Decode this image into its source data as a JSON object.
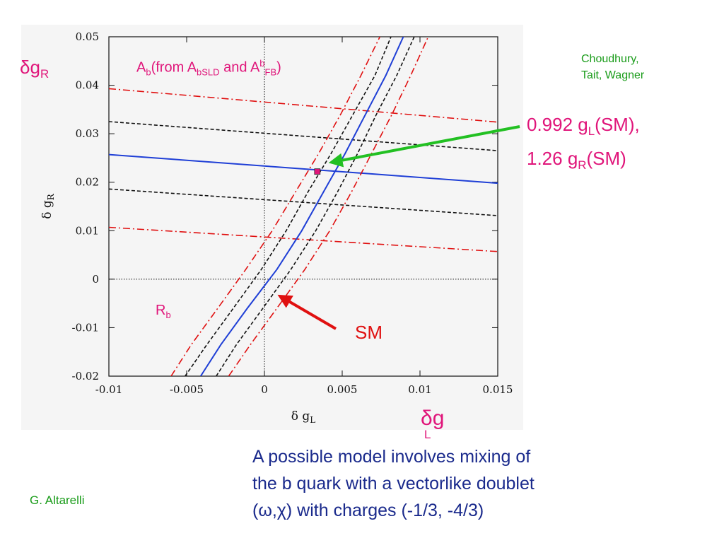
{
  "chart_data": {
    "type": "line",
    "xlabel": "δ g",
    "xlabel_sub": "L",
    "ylabel": "δ g",
    "ylabel_sub": "R",
    "xlim": [
      -0.01,
      0.015
    ],
    "ylim": [
      -0.02,
      0.05
    ],
    "x_ticks": [
      -0.01,
      -0.005,
      0,
      0.005,
      0.01,
      0.015
    ],
    "x_tick_labels": [
      "-0.01",
      "-0.005",
      "0",
      "0.005",
      "0.01",
      "0.015"
    ],
    "y_ticks": [
      -0.02,
      -0.01,
      0,
      0.01,
      0.02,
      0.03,
      0.04,
      0.05
    ],
    "y_tick_labels": [
      "-0.02",
      "-0.01",
      "0",
      "0.01",
      "0.02",
      "0.03",
      "0.04",
      "0.05"
    ],
    "zero_lines": true,
    "series": [
      {
        "group": "Ab",
        "style": "central",
        "color": "#1f3fd6",
        "x": [
          -0.01,
          0.015
        ],
        "y": [
          0.0257,
          0.0198
        ]
      },
      {
        "group": "Ab",
        "style": "band-1sigma",
        "color": "#111111",
        "x": [
          -0.01,
          0.015
        ],
        "y": [
          0.0325,
          0.0265
        ]
      },
      {
        "group": "Ab",
        "style": "band-1sigma",
        "color": "#111111",
        "x": [
          -0.01,
          0.015
        ],
        "y": [
          0.0186,
          0.0131
        ]
      },
      {
        "group": "Ab",
        "style": "band-2sigma",
        "color": "#e01010",
        "x": [
          -0.01,
          0.015
        ],
        "y": [
          0.0393,
          0.0324
        ]
      },
      {
        "group": "Ab",
        "style": "band-2sigma",
        "color": "#e01010",
        "x": [
          -0.01,
          0.015
        ],
        "y": [
          0.0107,
          0.0057
        ]
      },
      {
        "group": "Rb",
        "style": "central",
        "color": "#1f3fd6",
        "x": [
          -0.0041,
          -0.0028,
          -0.0011,
          0.0008,
          0.0024,
          0.0038,
          0.0052,
          0.0065,
          0.0078,
          0.009
        ],
        "y": [
          -0.02,
          -0.0135,
          -0.006,
          0.002,
          0.01,
          0.018,
          0.026,
          0.034,
          0.042,
          0.0505
        ]
      },
      {
        "group": "Rb",
        "style": "band-1sigma",
        "color": "#111111",
        "x": [
          -0.0051,
          -0.0037,
          -0.002,
          -0.0002,
          0.0014,
          0.0028,
          0.0043,
          0.0057,
          0.0071,
          0.0082
        ],
        "y": [
          -0.02,
          -0.0135,
          -0.006,
          0.002,
          0.01,
          0.018,
          0.026,
          0.034,
          0.042,
          0.0505
        ]
      },
      {
        "group": "Rb",
        "style": "band-1sigma",
        "color": "#111111",
        "x": [
          -0.0031,
          -0.0018,
          -0.0001,
          0.0017,
          0.0033,
          0.0047,
          0.006,
          0.0072,
          0.0085,
          0.0097
        ],
        "y": [
          -0.02,
          -0.0135,
          -0.006,
          0.002,
          0.01,
          0.018,
          0.026,
          0.034,
          0.042,
          0.0505
        ]
      },
      {
        "group": "Rb",
        "style": "band-2sigma",
        "color": "#e01010",
        "x": [
          -0.006,
          -0.0047,
          -0.003,
          -0.0012,
          0.0005,
          0.002,
          0.0035,
          0.0049,
          0.0062,
          0.0075
        ],
        "y": [
          -0.02,
          -0.0135,
          -0.006,
          0.002,
          0.01,
          0.018,
          0.026,
          0.034,
          0.042,
          0.0505
        ]
      },
      {
        "group": "Rb",
        "style": "band-2sigma",
        "color": "#e01010",
        "x": [
          -0.0023,
          -0.0009,
          0.0008,
          0.0026,
          0.0042,
          0.0056,
          0.0069,
          0.0082,
          0.0094,
          0.0106
        ],
        "y": [
          -0.02,
          -0.0135,
          -0.006,
          0.002,
          0.01,
          0.018,
          0.026,
          0.034,
          0.042,
          0.0505
        ]
      }
    ],
    "points": [
      {
        "x": 0.0034,
        "y": 0.0222,
        "color": "#e0157a"
      }
    ],
    "arrows": [
      {
        "target": [
          0.0043,
          0.0241
        ],
        "color": "#22c022"
      },
      {
        "target": [
          0.001,
          -0.0035
        ],
        "color": "#e01010"
      }
    ]
  },
  "annotations": {
    "corner_label": {
      "main": "δg",
      "sub": "R"
    },
    "ab_label": {
      "a": "A",
      "b": "b",
      "from": "(from A",
      "bsld": "bSLD",
      "and": " and A",
      "sup_b": "b",
      "fb": "FB",
      "close": ")"
    },
    "rb_label": {
      "r": "R",
      "b": "b"
    },
    "sm_label": "SM",
    "authors_line1": "Choudhury,",
    "authors_line2": "Tait, Wagner",
    "fit_point": {
      "l1a": "0.992 g",
      "l1sub": "L",
      "l1b": "(SM),",
      "l2a": "1.26 g",
      "l2sub": "R",
      "l2b": "(SM)"
    },
    "dgl_big": {
      "main": "δg",
      "sub": "L"
    },
    "caption_line1": "A possible model involves mixing of",
    "caption_line2": "the b quark with a vectorlike doublet",
    "caption_line3": "(ω,χ) with charges (-1/3, -4/3)",
    "credit": "G. Altarelli"
  }
}
